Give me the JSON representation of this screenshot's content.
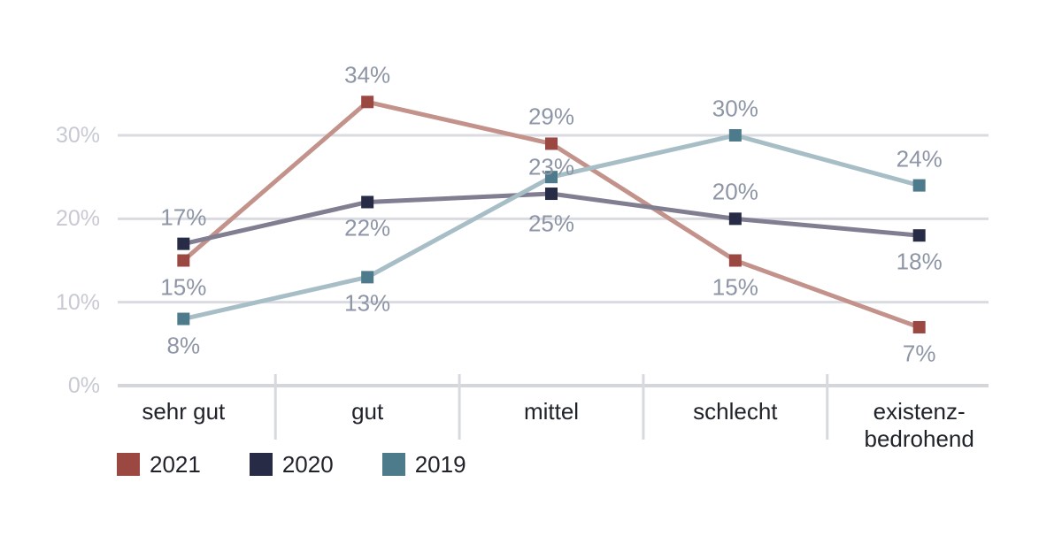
{
  "chart_data": {
    "type": "line",
    "title": "",
    "xlabel": "",
    "ylabel": "",
    "ylim": [
      0,
      36
    ],
    "grid": "horizontal",
    "legend_position": "bottom-left",
    "categories": [
      "sehr gut",
      "gut",
      "mittel",
      "schlecht",
      "existenz-\nbedrohend"
    ],
    "y_ticks": [
      {
        "value": 0,
        "label": "0%"
      },
      {
        "value": 10,
        "label": "10%"
      },
      {
        "value": 20,
        "label": "20%"
      },
      {
        "value": 30,
        "label": "30%"
      }
    ],
    "series": [
      {
        "name": "2021",
        "marker_color": "#9c4842",
        "line_color": "#c3928b",
        "values": [
          15,
          34,
          29,
          15,
          7
        ],
        "points": [
          {
            "value": 15,
            "label": "15%",
            "label_pos": "below"
          },
          {
            "value": 34,
            "label": "34%",
            "label_pos": "above"
          },
          {
            "value": 29,
            "label": "29%",
            "label_pos": "above"
          },
          {
            "value": 15,
            "label": "15%",
            "label_pos": "below"
          },
          {
            "value": 7,
            "label": "7%",
            "label_pos": "below"
          }
        ]
      },
      {
        "name": "2020",
        "marker_color": "#272b45",
        "line_color": "#817e92",
        "values": [
          17,
          22,
          23,
          20,
          18
        ],
        "points": [
          {
            "value": 17,
            "label": "17%",
            "label_pos": "above"
          },
          {
            "value": 22,
            "label": "22%",
            "label_pos": "below"
          },
          {
            "value": 23,
            "label": "23%",
            "label_pos": "above"
          },
          {
            "value": 20,
            "label": "20%",
            "label_pos": "above"
          },
          {
            "value": 18,
            "label": "18%",
            "label_pos": "below"
          }
        ]
      },
      {
        "name": "2019",
        "marker_color": "#4d7b8b",
        "line_color": "#a7bec7",
        "values": [
          8,
          13,
          25,
          30,
          24
        ],
        "points": [
          {
            "value": 8,
            "label": "8%",
            "label_pos": "below"
          },
          {
            "value": 13,
            "label": "13%",
            "label_pos": "below"
          },
          {
            "value": 25,
            "label": "25%",
            "label_pos": "below",
            "label_dy": 53
          },
          {
            "value": 30,
            "label": "30%",
            "label_pos": "above"
          },
          {
            "value": 24,
            "label": "24%",
            "label_pos": "above"
          }
        ]
      }
    ],
    "legend": [
      {
        "label": "2021",
        "color": "#9c4842"
      },
      {
        "label": "2020",
        "color": "#272b45"
      },
      {
        "label": "2019",
        "color": "#4d7b8b"
      }
    ],
    "colors": {
      "background": "#ffffff",
      "grid_line": "#d9dbe1",
      "axis_line": "#d4d6dc",
      "tick_line": "#d7d9df",
      "y_label": "#c7cad3",
      "data_label": "#8d95a6",
      "category_label": "#21232b",
      "legend_label": "#21232b"
    }
  }
}
